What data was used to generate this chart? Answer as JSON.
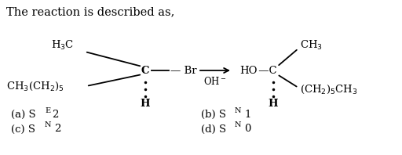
{
  "title": "The reaction is described as,",
  "bg_color": "#ffffff",
  "tc": "#000000",
  "title_fs": 10.5,
  "fs": 9.5,
  "opt_fs": 9.5,
  "left_molecule": {
    "ch3ch2_text": "CH$_3$(CH$_2$)$_5$",
    "h3c_text": "H$_3$C",
    "h_text": "H",
    "c_text": "C",
    "br_text": "Br",
    "dash_text": "—"
  },
  "arrow_label": "OH$^-$",
  "right_molecule": {
    "ho_text": "HO",
    "c_text": "C",
    "h_text": "H",
    "ch2_5ch3_text": "(CH$_2$)$_5$CH$_3$",
    "ch3_text": "CH$_3$"
  },
  "options": [
    {
      "label": "(a) S",
      "sub": "E",
      "num": "2",
      "col": 0.03,
      "row": 0.185
    },
    {
      "label": "(b) S",
      "sub": "N",
      "num": "1",
      "col": 0.5,
      "row": 0.185
    },
    {
      "label": "(c) S",
      "sub": "N",
      "num": "2",
      "col": 0.03,
      "row": 0.07
    },
    {
      "label": "(d) S",
      "sub": "N",
      "num": "0",
      "col": 0.5,
      "row": 0.07
    }
  ]
}
